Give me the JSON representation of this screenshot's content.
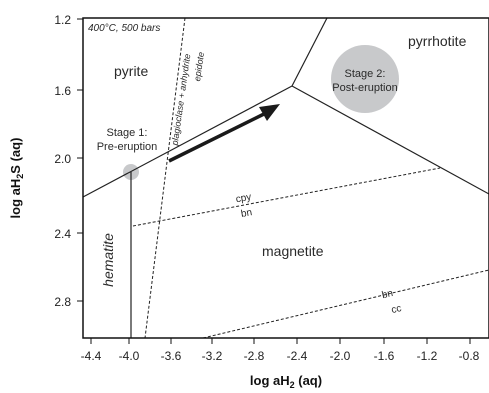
{
  "diagram": {
    "conditions": "400°C, 500 bars",
    "x_axis": {
      "title_main": "log aH",
      "title_sub": "2",
      "title_tail": " (aq)",
      "ticks": [
        "-4.4",
        "-4.0",
        "-3.6",
        "-3.2",
        "-2.8",
        "-2.4",
        "-2.0",
        "-1.6",
        "-1.2",
        "-0.8"
      ]
    },
    "y_axis": {
      "title_main": "log aH",
      "title_sub": "2",
      "title_tail": "S (aq)",
      "ticks": [
        "1.2",
        "1.6",
        "2.0",
        "2.4",
        "2.8"
      ]
    },
    "fields": {
      "pyrite": "pyrite",
      "pyrrhotite": "pyrrhotite",
      "magnetite": "magnetite",
      "hematite": "hematite"
    },
    "boundary_labels": {
      "plag_top": "plagioclase + anhydrite",
      "plag_bottom": "epidote",
      "cpy": "cpy",
      "bn_upper": "bn",
      "bn_lower": "bn",
      "cc": "cc"
    },
    "stages": {
      "stage1_line1": "Stage 1:",
      "stage1_line2": "Pre-eruption",
      "stage2_line1": "Stage 2:",
      "stage2_line2": "Post-eruption"
    },
    "colors": {
      "axes": "#111111",
      "boundary": "#222222",
      "stage_marker": "#c8c9cb",
      "arrow": "#1a1a1a"
    }
  }
}
